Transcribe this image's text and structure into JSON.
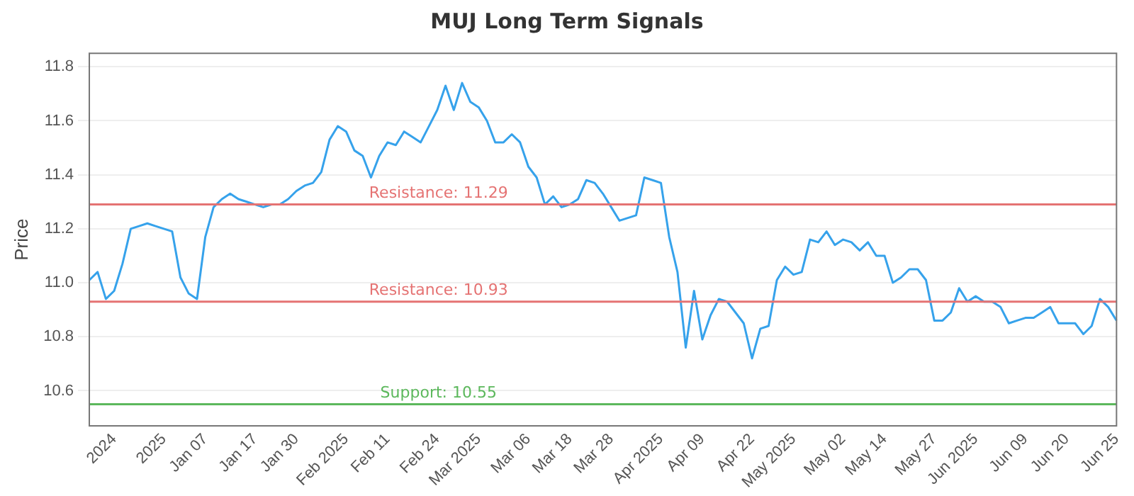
{
  "chart_data": {
    "type": "line",
    "title": "MUJ Long Term Signals",
    "ylabel": "Price",
    "categories": [
      null,
      null,
      null,
      "2024",
      null,
      null,
      null,
      null,
      null,
      "2025",
      null,
      null,
      null,
      null,
      "Jan 07",
      null,
      null,
      null,
      null,
      null,
      "Jan 17",
      null,
      null,
      null,
      null,
      "Jan 30",
      null,
      null,
      null,
      null,
      null,
      "Feb 2025",
      null,
      null,
      null,
      null,
      "Feb 11",
      null,
      null,
      null,
      null,
      null,
      "Feb 24",
      null,
      null,
      null,
      null,
      "Mar 2025",
      null,
      null,
      null,
      null,
      null,
      "Mar 06",
      null,
      null,
      null,
      null,
      "Mar 18",
      null,
      null,
      null,
      null,
      "Mar 28",
      null,
      null,
      null,
      null,
      null,
      "Apr 2025",
      null,
      null,
      null,
      null,
      "Apr 09",
      null,
      null,
      null,
      null,
      null,
      "Apr 22",
      null,
      null,
      null,
      null,
      "May 2025",
      null,
      null,
      null,
      null,
      null,
      "May 02",
      null,
      null,
      null,
      null,
      "May 14",
      null,
      null,
      null,
      null,
      null,
      "May 27",
      null,
      null,
      null,
      null,
      "Jun 2025",
      null,
      null,
      null,
      null,
      null,
      "Jun 09",
      null,
      null,
      null,
      null,
      "Jun 20",
      null,
      null,
      null,
      null,
      null,
      "Jun 25"
    ],
    "series": [
      {
        "color": "#36a2eb",
        "values": [
          11.01,
          11.04,
          10.94,
          10.97,
          11.07,
          11.2,
          11.21,
          11.22,
          11.21,
          11.2,
          11.19,
          11.02,
          10.96,
          10.94,
          11.17,
          11.28,
          11.31,
          11.33,
          11.31,
          11.3,
          11.29,
          11.28,
          11.29,
          11.29,
          11.31,
          11.34,
          11.36,
          11.37,
          11.41,
          11.53,
          11.58,
          11.56,
          11.49,
          11.47,
          11.39,
          11.47,
          11.52,
          11.51,
          11.56,
          11.54,
          11.52,
          11.58,
          11.64,
          11.73,
          11.64,
          11.74,
          11.67,
          11.65,
          11.6,
          11.52,
          11.52,
          11.55,
          11.52,
          11.43,
          11.39,
          11.29,
          11.32,
          11.28,
          11.29,
          11.31,
          11.38,
          11.37,
          11.33,
          11.28,
          11.23,
          11.24,
          11.25,
          11.39,
          11.38,
          11.37,
          11.17,
          11.04,
          10.76,
          10.97,
          10.79,
          10.88,
          10.94,
          10.93,
          10.89,
          10.85,
          10.72,
          10.83,
          10.84,
          11.01,
          11.06,
          11.03,
          11.04,
          11.16,
          11.15,
          11.19,
          11.14,
          11.16,
          11.15,
          11.12,
          11.15,
          11.1,
          11.1,
          11.0,
          11.02,
          11.05,
          11.05,
          11.01,
          10.86,
          10.86,
          10.89,
          10.98,
          10.93,
          10.95,
          10.93,
          10.93,
          10.91,
          10.85,
          10.86,
          10.87,
          10.87,
          10.89,
          10.91,
          10.85,
          10.85,
          10.85,
          10.81,
          10.84,
          10.94,
          10.91,
          10.86
        ]
      }
    ],
    "ylim": [
      10.47,
      11.85
    ],
    "yticks": [
      10.6,
      10.8,
      {
        "value": 11,
        "label": "11.0"
      },
      11.2,
      11.4,
      11.6,
      11.8
    ],
    "grid": "y",
    "legend": false,
    "marker": "none",
    "line_style": "solid",
    "ref_lines": [
      {
        "axis": "y",
        "value": 11.29,
        "label": "Resistance: 11.29",
        "color": "#e57373"
      },
      {
        "axis": "y",
        "value": 10.93,
        "label": "Resistance: 10.93",
        "color": "#e57373"
      },
      {
        "axis": "y",
        "value": 10.55,
        "label": "Support: 10.55",
        "color": "#5cb85c"
      }
    ]
  }
}
